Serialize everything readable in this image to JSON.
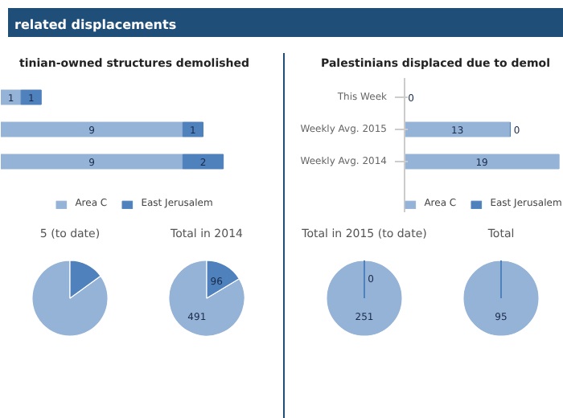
{
  "chart_data": [
    {
      "type": "bar",
      "orientation": "horizontal",
      "stacked": true,
      "title": "tinian-owned structures demolished",
      "annotations": [
        "related displacements"
      ],
      "categories": [
        null,
        null,
        null
      ],
      "series": [
        {
          "name": "Area C",
          "color": "#95b3d7",
          "values": [
            1,
            9,
            9
          ]
        },
        {
          "name": "East Jerusalem",
          "color": "#4f81bd",
          "values": [
            1,
            1,
            2
          ]
        }
      ],
      "data_labels": true,
      "legend": "bottom",
      "tick_labels": false,
      "grid": false
    },
    {
      "type": "bar",
      "orientation": "horizontal",
      "stacked": true,
      "title": "Palestinians displaced due to demol",
      "categories": [
        "This Week",
        "Weekly Avg. 2015",
        "Weekly Avg. 2014"
      ],
      "series": [
        {
          "name": "Area C",
          "color": "#95b3d7",
          "values": [
            0,
            13,
            19
          ]
        },
        {
          "name": "East Jerusalem",
          "color": "#4f81bd",
          "values": [
            null,
            0,
            null
          ]
        }
      ],
      "data_labels": true,
      "legend": "bottom",
      "tick_labels": "y",
      "grid": false
    },
    {
      "type": "pie",
      "title": "5 (to date)",
      "categories": [
        null,
        null
      ],
      "values": [
        85,
        15
      ],
      "colors": [
        "#95b3d7",
        "#4f81bd"
      ]
    },
    {
      "type": "pie",
      "title": "Total in 2014",
      "categories": [
        null,
        null
      ],
      "values": [
        491,
        96
      ],
      "colors": [
        "#95b3d7",
        "#4f81bd"
      ],
      "data_labels": true
    },
    {
      "type": "pie",
      "title": "Total in 2015 (to date)",
      "categories": [
        null,
        null
      ],
      "values": [
        251,
        0
      ],
      "colors": [
        "#95b3d7",
        "#4f81bd"
      ],
      "value_labels": [
        "251",
        "0"
      ]
    },
    {
      "type": "pie",
      "title": "Total",
      "categories": [
        null,
        null
      ],
      "values": [
        95,
        0
      ],
      "colors": [
        "#95b3d7",
        "#4f81bd"
      ],
      "value_labels": [
        "95",
        null
      ]
    }
  ]
}
